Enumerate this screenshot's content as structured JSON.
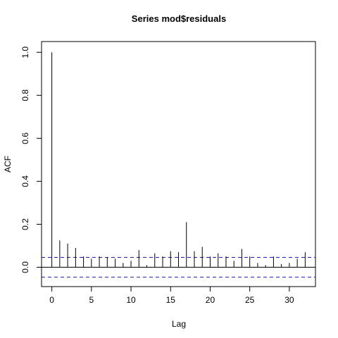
{
  "chart_data": {
    "type": "bar",
    "title": "Series  mod$residuals",
    "xlabel": "Lag",
    "ylabel": "ACF",
    "xlim": [
      -1.3,
      33.3
    ],
    "ylim": [
      -0.09,
      1.05
    ],
    "x_ticks": [
      0,
      5,
      10,
      15,
      20,
      25,
      30
    ],
    "x_tick_labels": [
      "0",
      "5",
      "10",
      "15",
      "20",
      "25",
      "30"
    ],
    "y_ticks": [
      0.0,
      0.2,
      0.4,
      0.6,
      0.8,
      1.0
    ],
    "y_tick_labels": [
      "0.0",
      "0.2",
      "0.4",
      "0.6",
      "0.8",
      "1.0"
    ],
    "confidence_bound": 0.046,
    "grid": false,
    "series": [
      {
        "lags": [
          0,
          1,
          2,
          3,
          4,
          5,
          6,
          7,
          8,
          9,
          10,
          11,
          12,
          13,
          14,
          15,
          16,
          17,
          18,
          19,
          20,
          21,
          22,
          23,
          24,
          25,
          26,
          27,
          28,
          29,
          30,
          31,
          32
        ],
        "values": [
          1.0,
          0.125,
          0.11,
          0.09,
          0.05,
          0.04,
          0.05,
          0.045,
          0.04,
          0.02,
          0.03,
          0.08,
          0.01,
          0.065,
          0.05,
          0.075,
          0.07,
          0.21,
          0.075,
          0.095,
          0.05,
          0.065,
          0.05,
          0.03,
          0.085,
          0.05,
          0.02,
          0.01,
          0.05,
          0.015,
          0.02,
          0.04,
          0.07
        ]
      }
    ]
  }
}
